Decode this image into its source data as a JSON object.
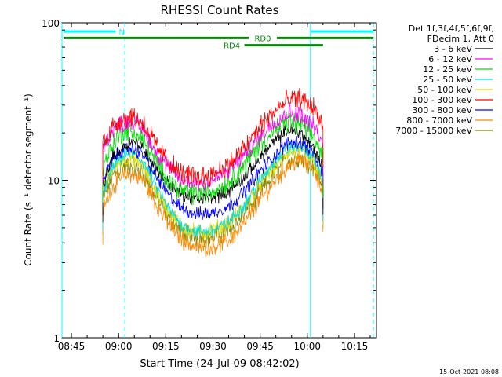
{
  "chart_data": {
    "type": "line",
    "title": "RHESSI Count Rates",
    "xlabel": "Start Time (24-Jul-09 08:42:02)",
    "ylabel": "Count Rate (s⁻¹ detector segment⁻¹)",
    "yscale": "log",
    "ylim": [
      1,
      100
    ],
    "xlim": [
      "08:42",
      "10:22"
    ],
    "x_ticks": [
      "08:45",
      "09:00",
      "09:15",
      "09:30",
      "09:45",
      "10:00",
      "10:15"
    ],
    "y_ticks": [
      "1",
      "10",
      "100"
    ],
    "timestamp": "15-Oct-2021 08:08",
    "legend": {
      "placement": "right",
      "header": [
        "Det 1f,3f,4f,5f,6f,9f,",
        "FDecim 1, Att 0"
      ]
    },
    "series": [
      {
        "name": "3 - 6 keV",
        "color": "#000000",
        "values": [
          9,
          14,
          16,
          18,
          16,
          12,
          9.5,
          8,
          7.6,
          7.8,
          8.5,
          10.5,
          14,
          18,
          21,
          20,
          16,
          12
        ]
      },
      {
        "name": "6 - 12 keV",
        "color": "#ff00ff",
        "values": [
          16,
          21,
          23,
          24,
          21,
          15,
          12,
          10,
          9.6,
          10,
          11.5,
          14.5,
          19,
          24,
          27,
          26,
          22,
          17
        ]
      },
      {
        "name": "12 - 25 keV",
        "color": "#00dd00",
        "values": [
          12,
          17,
          20,
          20.5,
          18,
          13,
          10,
          8.6,
          8.2,
          8.5,
          9.8,
          12.5,
          17,
          21,
          23.5,
          22.5,
          19,
          14
        ]
      },
      {
        "name": "25 - 50 keV",
        "color": "#00dddd",
        "values": [
          8,
          12,
          14,
          15,
          13,
          9,
          6.5,
          5.2,
          4.7,
          4.8,
          5.4,
          7,
          10,
          13.5,
          16,
          16.5,
          14,
          10
        ]
      },
      {
        "name": "50 - 100 keV",
        "color": "#dddd00",
        "values": [
          8.5,
          12,
          13.5,
          14,
          12,
          8.5,
          6.3,
          5.1,
          4.6,
          4.8,
          5.3,
          6.8,
          9.6,
          12.5,
          15,
          15.5,
          13,
          9.5
        ]
      },
      {
        "name": "100 - 300 keV",
        "color": "#ff0000",
        "values": [
          17,
          22,
          24.5,
          25.5,
          23,
          16.5,
          13,
          11,
          10.5,
          11,
          12.5,
          16,
          22,
          28,
          32,
          33,
          29,
          22
        ]
      },
      {
        "name": "300 - 800 keV",
        "color": "#0000ff",
        "values": [
          10,
          13.5,
          15.5,
          16,
          14.5,
          10.5,
          8,
          6.6,
          6.1,
          6.2,
          6.8,
          8.5,
          11.5,
          14.5,
          17.5,
          17.5,
          15,
          11
        ]
      },
      {
        "name": "800 - 7000 keV",
        "color": "#ff8800",
        "values": [
          6.5,
          9,
          10.5,
          11,
          10,
          7,
          5.2,
          4.2,
          3.7,
          3.8,
          4.1,
          5.3,
          7.5,
          10,
          12.5,
          13.5,
          12,
          8.5
        ]
      },
      {
        "name": "7000 - 15000 keV",
        "color": "#888800",
        "values": [
          7.5,
          10.5,
          12,
          12.5,
          11,
          7.8,
          5.8,
          4.7,
          4.3,
          4.4,
          4.8,
          6.1,
          8.5,
          11.2,
          13.5,
          14,
          12.5,
          9
        ]
      }
    ],
    "x": [
      "08:55",
      "08:58",
      "09:01",
      "09:04",
      "09:08",
      "09:12",
      "09:16",
      "09:20",
      "09:25",
      "09:30",
      "09:35",
      "09:40",
      "09:45",
      "09:50",
      "09:54",
      "09:58",
      "10:02",
      "10:05"
    ],
    "annotations": [
      {
        "label": "N",
        "start": "08:42",
        "end": "09:02",
        "y": 88,
        "color": "#00ffff"
      },
      {
        "label": "",
        "start": "10:01",
        "end": "10:21",
        "y": 88,
        "color": "#00ffff"
      },
      {
        "label": "RD0",
        "start": "08:42",
        "end": "10:21",
        "y": 80,
        "color": "#008800"
      },
      {
        "label": "RD4",
        "start": "09:40",
        "end": "10:05",
        "y": 72,
        "color": "#008800"
      }
    ],
    "vlines": [
      {
        "x": "08:42",
        "style": "solid",
        "color": "#00ffff"
      },
      {
        "x": "09:02",
        "style": "dashed",
        "color": "#00ffff"
      },
      {
        "x": "10:01",
        "style": "solid",
        "color": "#00ffff"
      },
      {
        "x": "10:21",
        "style": "dashed",
        "color": "#00ffff"
      }
    ]
  }
}
